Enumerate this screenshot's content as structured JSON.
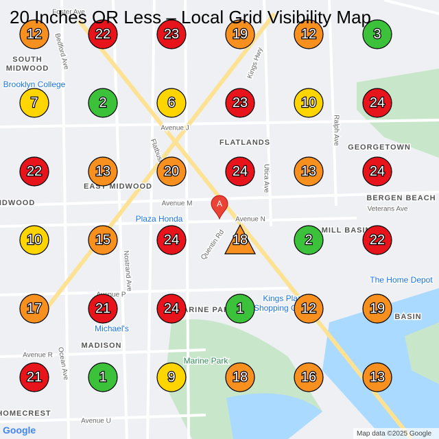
{
  "title": "20 Inches OR Less – Local Grid Visibility Map",
  "markers": [
    {
      "value": 12,
      "color": "#f7901e"
    },
    {
      "value": 22,
      "color": "#e8141c"
    },
    {
      "value": 23,
      "color": "#e8141c"
    },
    {
      "value": 19,
      "color": "#f7901e"
    },
    {
      "value": 12,
      "color": "#f7901e"
    },
    {
      "value": 3,
      "color": "#3cc13b"
    },
    {
      "value": 7,
      "color": "#ffd500"
    },
    {
      "value": 2,
      "color": "#3cc13b"
    },
    {
      "value": 6,
      "color": "#ffd500"
    },
    {
      "value": 23,
      "color": "#e8141c"
    },
    {
      "value": 10,
      "color": "#ffd500"
    },
    {
      "value": 24,
      "color": "#e8141c"
    },
    {
      "value": 22,
      "color": "#e8141c"
    },
    {
      "value": 13,
      "color": "#f7901e"
    },
    {
      "value": 20,
      "color": "#f7901e"
    },
    {
      "value": 24,
      "color": "#e8141c"
    },
    {
      "value": 13,
      "color": "#f7901e"
    },
    {
      "value": 24,
      "color": "#e8141c"
    },
    {
      "value": 10,
      "color": "#ffd500"
    },
    {
      "value": 15,
      "color": "#f7901e"
    },
    {
      "value": 24,
      "color": "#e8141c"
    },
    {
      "value": 18,
      "color": "#f7901e",
      "shape": "triangle"
    },
    {
      "value": 2,
      "color": "#3cc13b"
    },
    {
      "value": 22,
      "color": "#e8141c"
    },
    {
      "value": 17,
      "color": "#f7901e"
    },
    {
      "value": 21,
      "color": "#e8141c"
    },
    {
      "value": 24,
      "color": "#e8141c"
    },
    {
      "value": 1,
      "color": "#3cc13b"
    },
    {
      "value": 12,
      "color": "#f7901e"
    },
    {
      "value": 19,
      "color": "#f7901e"
    },
    {
      "value": 21,
      "color": "#e8141c"
    },
    {
      "value": 1,
      "color": "#3cc13b"
    },
    {
      "value": 9,
      "color": "#ffd500"
    },
    {
      "value": 18,
      "color": "#f7901e"
    },
    {
      "value": 16,
      "color": "#f7901e"
    },
    {
      "value": 13,
      "color": "#f7901e"
    }
  ],
  "places": [
    "SOUTH",
    "MIDWOOD",
    "FLATLANDS",
    "GEORGETOWN",
    "EAST MIDWOOD",
    "MIDWOOD",
    "BERGEN BEACH",
    "OLD MILL BASIN",
    "MARINE PARK",
    "BASIN",
    "MADISON",
    "HOMECREST"
  ],
  "pois": [
    "Brooklyn College",
    "Plaza Honda",
    "The Home Depot",
    "Kings Plaza",
    "Shopping Center",
    "Michael's"
  ],
  "parks": [
    "Marine Park"
  ],
  "streets": [
    "Foster Ave",
    "Avenue J",
    "Avenue M",
    "Avenue N",
    "Avenue P",
    "Avenue R",
    "Avenue U",
    "Veterans Ave",
    "Kings Hwy",
    "Utica Ave",
    "Ralph Ave",
    "Quentin Rd",
    "Bedford Ave",
    "Nostrand Ave",
    "Ocean Ave",
    "Flatbush Ave"
  ],
  "pin": "A",
  "attribution": "Map data ©2025 Google",
  "logo": "Google"
}
